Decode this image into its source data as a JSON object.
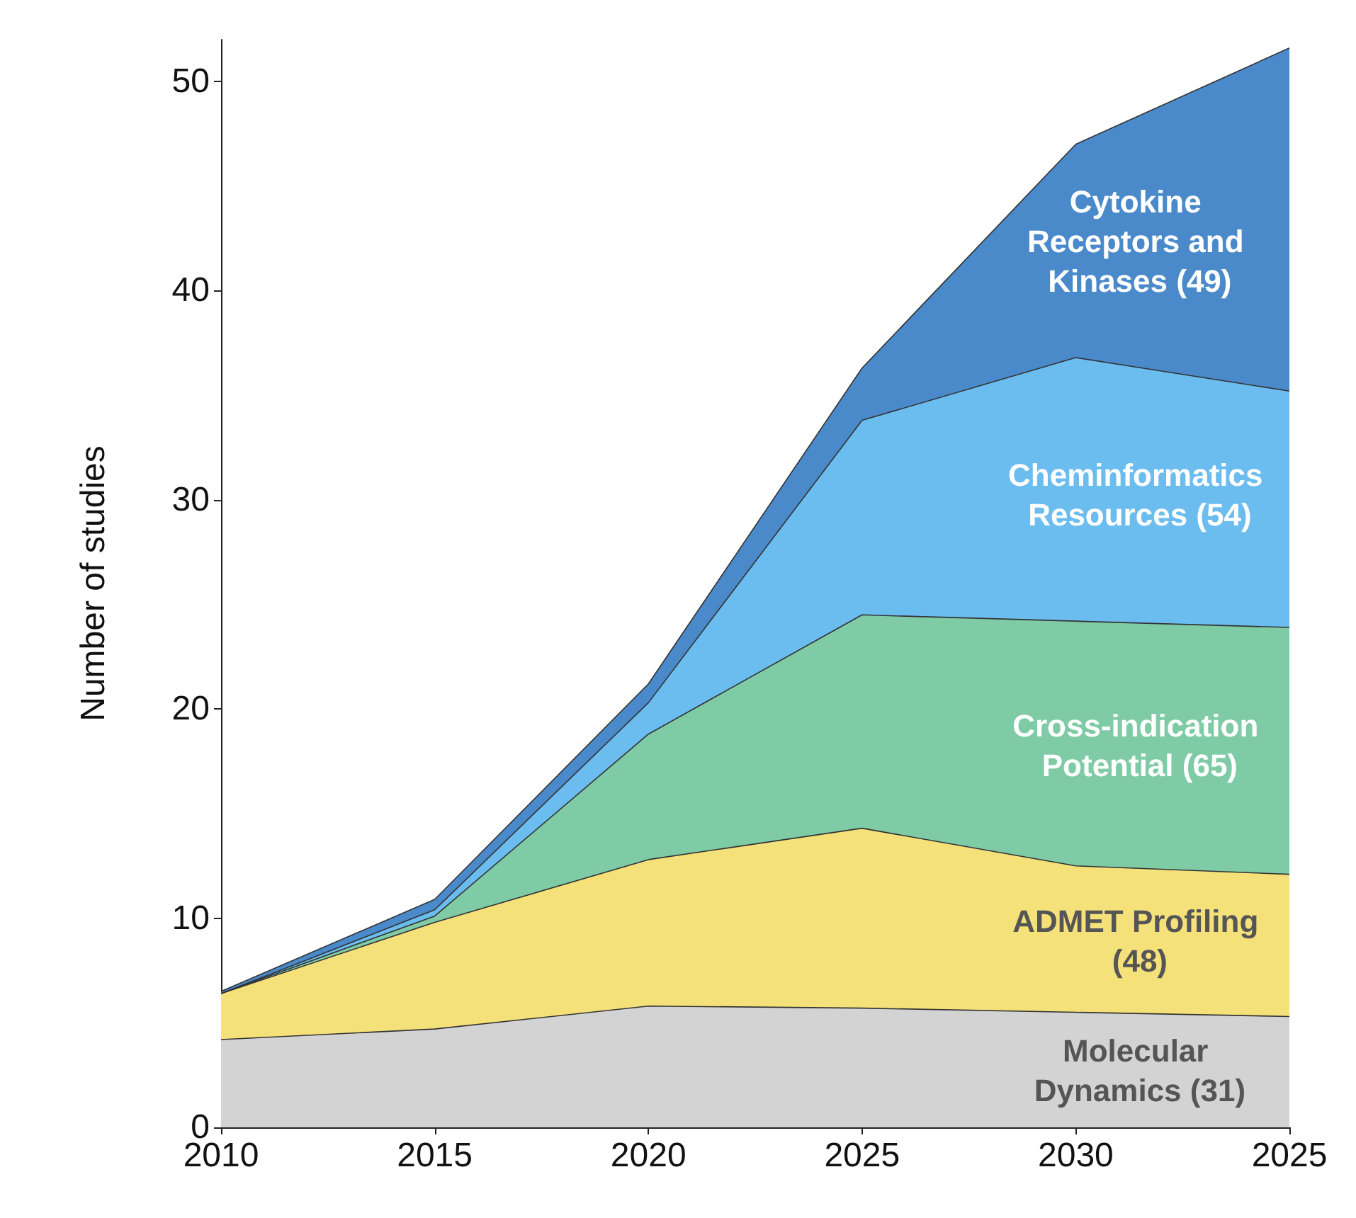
{
  "chart_data": {
    "type": "area",
    "stacked": true,
    "ylabel": "Number of studies",
    "categories": [
      "2010",
      "2015",
      "2020",
      "2025",
      "2030",
      "2025"
    ],
    "ylim": [
      0,
      52
    ],
    "yticks": [
      0,
      10,
      20,
      30,
      40,
      50
    ],
    "grid": false,
    "legend": false,
    "series": [
      {
        "name": "Molecular Dynamics (31)",
        "color": "#d3d3d3",
        "values": [
          4.2,
          4.7,
          5.8,
          5.7,
          5.5,
          5.3
        ]
      },
      {
        "name": "ADMET Profiling (48)",
        "color": "#f5e17a",
        "values": [
          2.2,
          5.1,
          7.0,
          8.6,
          7.0,
          6.8
        ]
      },
      {
        "name": "Cross-indication Potential (65)",
        "color": "#7ecba6",
        "values": [
          0,
          0.3,
          6.0,
          10.2,
          11.7,
          11.8
        ]
      },
      {
        "name": "Cheminformatics Resources (54)",
        "color": "#6bbcef",
        "values": [
          0,
          0.3,
          1.5,
          9.3,
          12.6,
          11.3
        ]
      },
      {
        "name": "Cytokine Receptors and Kinases (49)",
        "color": "#4a8acb",
        "values": [
          0.1,
          0.5,
          0.9,
          2.5,
          10.2,
          16.4
        ]
      }
    ]
  }
}
